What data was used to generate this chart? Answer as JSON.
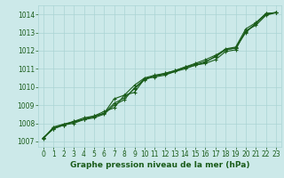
{
  "xlabel": "Graphe pression niveau de la mer (hPa)",
  "xlim": [
    -0.5,
    23.5
  ],
  "ylim": [
    1006.7,
    1014.5
  ],
  "yticks": [
    1007,
    1008,
    1009,
    1010,
    1011,
    1012,
    1013,
    1014
  ],
  "xticks": [
    0,
    1,
    2,
    3,
    4,
    5,
    6,
    7,
    8,
    9,
    10,
    11,
    12,
    13,
    14,
    15,
    16,
    17,
    18,
    19,
    20,
    21,
    22,
    23
  ],
  "bg_color": "#cce9e9",
  "grid_color": "#aad4d4",
  "line_color": "#1a5c1a",
  "series": [
    [
      1007.2,
      1007.7,
      1007.9,
      1008.0,
      1008.2,
      1008.3,
      1008.5,
      1009.0,
      1009.3,
      1009.95,
      1010.45,
      1010.55,
      1010.65,
      1010.85,
      1011.05,
      1011.2,
      1011.3,
      1011.5,
      1011.95,
      1012.05,
      1013.1,
      1013.4,
      1013.95,
      1014.1
    ],
    [
      1007.2,
      1007.7,
      1007.9,
      1008.1,
      1008.3,
      1008.4,
      1008.65,
      1008.85,
      1009.55,
      1009.7,
      1010.45,
      1010.6,
      1010.75,
      1010.9,
      1011.1,
      1011.3,
      1011.5,
      1011.75,
      1012.05,
      1012.15,
      1013.0,
      1013.5,
      1014.05,
      1014.1
    ],
    [
      1007.2,
      1007.75,
      1007.95,
      1008.1,
      1008.22,
      1008.4,
      1008.55,
      1009.35,
      1009.55,
      1010.1,
      1010.5,
      1010.65,
      1010.75,
      1010.9,
      1011.1,
      1011.25,
      1011.4,
      1011.65,
      1012.05,
      1012.15,
      1013.05,
      1013.5,
      1014.0,
      1014.1
    ],
    [
      1007.15,
      1007.8,
      1007.95,
      1008.05,
      1008.22,
      1008.35,
      1008.55,
      1009.1,
      1009.4,
      1009.9,
      1010.4,
      1010.6,
      1010.7,
      1010.85,
      1011.0,
      1011.2,
      1011.35,
      1011.7,
      1012.1,
      1012.2,
      1013.2,
      1013.55,
      1014.05,
      1014.1
    ]
  ],
  "marker": "+",
  "markersize": 3,
  "linewidth": 0.8,
  "tick_fontsize": 5.5,
  "xlabel_fontsize": 6.5
}
